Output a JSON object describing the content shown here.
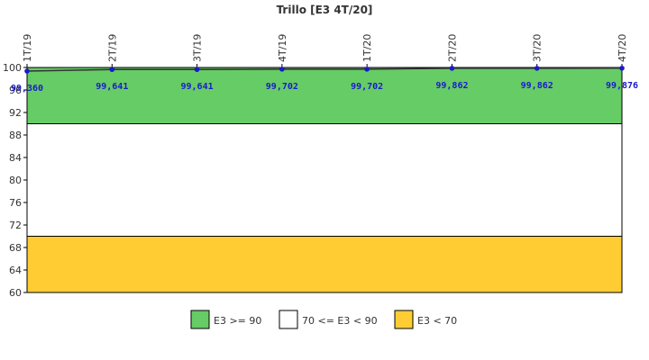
{
  "chart_data": {
    "type": "line",
    "title": "Trillo [E3 4T/20]",
    "categories": [
      "1T/19",
      "2T/19",
      "3T/19",
      "4T/19",
      "1T/20",
      "2T/20",
      "3T/20",
      "4T/20"
    ],
    "series": [
      {
        "values": [
          99.36,
          99.641,
          99.641,
          99.702,
          99.702,
          99.862,
          99.862,
          99.876
        ],
        "labels": [
          "99,360",
          "99,641",
          "99,641",
          "99,702",
          "99,702",
          "99,862",
          "99,862",
          "99,876"
        ],
        "color": "#1a1acc"
      }
    ],
    "ylim": [
      60,
      100
    ],
    "yticks": [
      60,
      64,
      68,
      72,
      76,
      80,
      84,
      88,
      92,
      96,
      100
    ],
    "bands": [
      {
        "from": 90,
        "to": 100,
        "color": "#66cc66",
        "label": "E3 >= 90"
      },
      {
        "from": 70,
        "to": 90,
        "color": "#ffffff",
        "label": "70 <= E3 < 90"
      },
      {
        "from": 60,
        "to": 70,
        "color": "#ffcc33",
        "label": "E3 < 70"
      }
    ],
    "legend_position": "bottom",
    "grid": false
  }
}
